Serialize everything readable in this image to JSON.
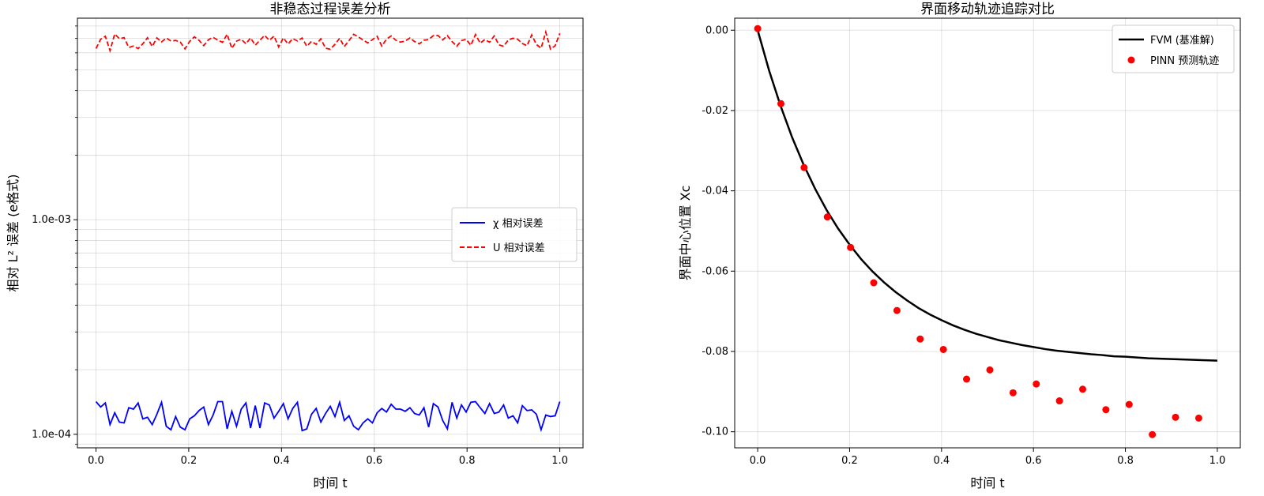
{
  "chart_data": [
    {
      "type": "line",
      "title": "非稳态过程误差分析",
      "xlabel": "时间 t",
      "ylabel": "相对 L² 误差 (e格式)",
      "yscale": "log",
      "xlim": [
        -0.04,
        1.05
      ],
      "ylim": [
        8.65e-05,
        0.0087
      ],
      "xticks": [
        0.0,
        0.2,
        0.4,
        0.6,
        0.8,
        1.0
      ],
      "xtick_labels": [
        "0.0",
        "0.2",
        "0.4",
        "0.6",
        "0.8",
        "1.0"
      ],
      "yticks": [
        0.0001,
        0.001
      ],
      "ytick_labels": [
        "1.0e-04",
        "1.0e-03"
      ],
      "grid": true,
      "legend_position": "center-right",
      "x": [
        0.0,
        0.0101,
        0.0202,
        0.0303,
        0.0404,
        0.0505,
        0.0606,
        0.0707,
        0.0808,
        0.0909,
        0.101,
        0.1111,
        0.1212,
        0.1313,
        0.1414,
        0.1515,
        0.1616,
        0.1717,
        0.1818,
        0.1919,
        0.202,
        0.2121,
        0.2222,
        0.2323,
        0.2424,
        0.2525,
        0.2626,
        0.2727,
        0.2828,
        0.2929,
        0.303,
        0.3131,
        0.3232,
        0.3333,
        0.3434,
        0.3535,
        0.3636,
        0.3737,
        0.3838,
        0.3939,
        0.404,
        0.4141,
        0.4242,
        0.4343,
        0.4444,
        0.4545,
        0.4646,
        0.4747,
        0.4848,
        0.4949,
        0.5051,
        0.5152,
        0.5253,
        0.5354,
        0.5455,
        0.5556,
        0.5657,
        0.5758,
        0.5859,
        0.596,
        0.6061,
        0.6162,
        0.6263,
        0.6364,
        0.6465,
        0.6566,
        0.6667,
        0.6768,
        0.6869,
        0.697,
        0.7071,
        0.7172,
        0.7273,
        0.7374,
        0.7475,
        0.7576,
        0.7677,
        0.7778,
        0.7879,
        0.798,
        0.8081,
        0.8182,
        0.8283,
        0.8384,
        0.8485,
        0.8586,
        0.8687,
        0.8788,
        0.8889,
        0.899,
        0.9091,
        0.9192,
        0.9293,
        0.9394,
        0.9495,
        0.9596,
        0.9697,
        0.9798,
        0.9899,
        1.0
      ],
      "series": [
        {
          "name": "χ 相对误差",
          "color": "#0000ff",
          "linestyle": "solid",
          "values": [
            0.000142,
            0.000134,
            0.00014,
            0.000111,
            0.000126,
            0.000114,
            0.000113,
            0.000133,
            0.000131,
            0.00014,
            0.000118,
            0.00012,
            0.000111,
            0.000124,
            0.000141,
            0.000109,
            0.000105,
            0.000121,
            0.000108,
            0.000105,
            0.000118,
            0.000122,
            0.000129,
            0.000134,
            0.000111,
            0.000123,
            0.000142,
            0.000142,
            0.000106,
            0.000128,
            0.000109,
            0.000131,
            0.00014,
            0.000107,
            0.000136,
            0.000107,
            0.00014,
            0.000137,
            0.000119,
            0.000128,
            0.000139,
            0.000118,
            0.000132,
            0.000141,
            0.000104,
            0.000106,
            0.000124,
            0.000132,
            0.000114,
            0.000125,
            0.000135,
            0.000121,
            0.000141,
            0.000116,
            0.000122,
            0.000109,
            0.000105,
            0.000113,
            0.000118,
            0.000113,
            0.000126,
            0.000132,
            0.000127,
            0.000138,
            0.000131,
            0.000131,
            0.000128,
            0.000133,
            0.000125,
            0.000123,
            0.000133,
            0.000108,
            0.000139,
            0.000134,
            0.000116,
            0.000106,
            0.000141,
            0.000119,
            0.000137,
            0.000127,
            0.000141,
            0.000142,
            0.000133,
            0.000125,
            0.000139,
            0.000125,
            0.000127,
            0.000137,
            0.000119,
            0.000122,
            0.000113,
            0.000136,
            0.000129,
            0.00013,
            0.000124,
            0.000105,
            0.000123,
            0.000121,
            0.000122,
            0.000142
          ]
        },
        {
          "name": "U 相对误差",
          "color": "#ff0000",
          "linestyle": "dashed",
          "values": [
            0.00628,
            0.00694,
            0.00716,
            0.00614,
            0.00734,
            0.00698,
            0.00706,
            0.00635,
            0.00645,
            0.00628,
            0.00661,
            0.00705,
            0.00642,
            0.00704,
            0.00674,
            0.00703,
            0.00681,
            0.00685,
            0.00673,
            0.00626,
            0.00678,
            0.00712,
            0.00686,
            0.00648,
            0.0069,
            0.00708,
            0.00688,
            0.00671,
            0.00732,
            0.00629,
            0.0068,
            0.00694,
            0.00661,
            0.00704,
            0.00651,
            0.00687,
            0.00723,
            0.00686,
            0.00717,
            0.00639,
            0.00704,
            0.00659,
            0.00699,
            0.00681,
            0.00703,
            0.00644,
            0.00678,
            0.00657,
            0.00697,
            0.0063,
            0.00623,
            0.00657,
            0.00701,
            0.00642,
            0.00684,
            0.00732,
            0.00711,
            0.00689,
            0.00667,
            0.00691,
            0.00716,
            0.00645,
            0.00694,
            0.00719,
            0.00686,
            0.00673,
            0.00681,
            0.00703,
            0.00677,
            0.0066,
            0.00687,
            0.00692,
            0.00721,
            0.00722,
            0.00689,
            0.00721,
            0.00677,
            0.00644,
            0.00684,
            0.00694,
            0.0065,
            0.0073,
            0.00665,
            0.00692,
            0.00672,
            0.00719,
            0.00653,
            0.00643,
            0.00689,
            0.00701,
            0.00694,
            0.00663,
            0.00647,
            0.00727,
            0.00656,
            0.0063,
            0.00749,
            0.00625,
            0.00647,
            0.00739
          ]
        }
      ]
    },
    {
      "type": "line",
      "title": "界面移动轨迹追踪对比",
      "xlabel": "时间 t",
      "ylabel": "界面中心位置 Xc",
      "xlim": [
        -0.05,
        1.05
      ],
      "ylim": [
        -0.104,
        0.003
      ],
      "xticks": [
        0.0,
        0.2,
        0.4,
        0.6,
        0.8,
        1.0
      ],
      "xtick_labels": [
        "0.0",
        "0.2",
        "0.4",
        "0.6",
        "0.8",
        "1.0"
      ],
      "yticks": [
        0.0,
        -0.02,
        -0.04,
        -0.06,
        -0.08,
        -0.1
      ],
      "ytick_labels": [
        "0.00",
        "-0.02",
        "-0.04",
        "-0.06",
        "-0.08",
        "-0.10"
      ],
      "grid": true,
      "legend_position": "top-right",
      "series": [
        {
          "name": "FVM (基准解)",
          "color": "#000000",
          "linestyle": "solid",
          "kind": "line",
          "x": [
            0.0,
            0.025,
            0.05,
            0.075,
            0.1,
            0.125,
            0.15,
            0.175,
            0.2,
            0.225,
            0.25,
            0.275,
            0.3,
            0.325,
            0.35,
            0.375,
            0.4,
            0.425,
            0.45,
            0.475,
            0.5,
            0.525,
            0.55,
            0.575,
            0.6,
            0.625,
            0.65,
            0.675,
            0.7,
            0.725,
            0.75,
            0.775,
            0.8,
            0.825,
            0.85,
            0.875,
            0.9,
            0.925,
            0.95,
            0.975,
            1.0
          ],
          "values": [
            0.0,
            -0.0101,
            -0.0189,
            -0.0267,
            -0.0335,
            -0.0395,
            -0.0448,
            -0.0494,
            -0.0534,
            -0.057,
            -0.0601,
            -0.0628,
            -0.0652,
            -0.0673,
            -0.0692,
            -0.0708,
            -0.0722,
            -0.0735,
            -0.0746,
            -0.0756,
            -0.0764,
            -0.0772,
            -0.0778,
            -0.0784,
            -0.0789,
            -0.0794,
            -0.0798,
            -0.0801,
            -0.0804,
            -0.0807,
            -0.0809,
            -0.0812,
            -0.0813,
            -0.0815,
            -0.0817,
            -0.0818,
            -0.0819,
            -0.082,
            -0.0821,
            -0.0822,
            -0.0823
          ]
        },
        {
          "name": "PINN 预测轨迹",
          "color": "#ff0000",
          "kind": "scatter",
          "x": [
            0.0,
            0.0505,
            0.101,
            0.1515,
            0.202,
            0.2525,
            0.303,
            0.3535,
            0.404,
            0.4545,
            0.5051,
            0.5556,
            0.6061,
            0.6566,
            0.7071,
            0.7576,
            0.8081,
            0.8586,
            0.9091,
            0.9596
          ],
          "values": [
            0.0004,
            -0.0183,
            -0.0342,
            -0.0465,
            -0.0541,
            -0.0629,
            -0.0698,
            -0.0769,
            -0.0795,
            -0.0869,
            -0.0846,
            -0.0903,
            -0.0881,
            -0.0923,
            -0.0894,
            -0.0945,
            -0.0932,
            -0.1007,
            -0.0964,
            -0.0966
          ]
        }
      ]
    }
  ]
}
